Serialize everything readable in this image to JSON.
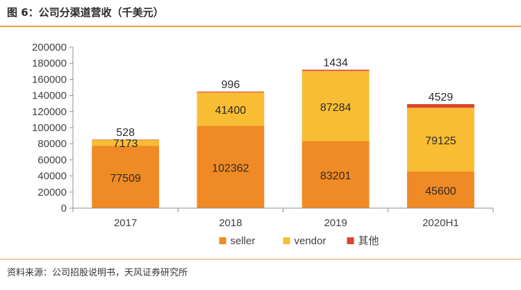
{
  "header": {
    "title": "图 6：公司分渠道营收（千美元）"
  },
  "footer": {
    "source": "资料来源：公司招股说明书，天风证券研究所"
  },
  "chart_data": {
    "type": "bar",
    "stacked": true,
    "categories": [
      "2017",
      "2018",
      "2019",
      "2020H1"
    ],
    "series": [
      {
        "name": "seller",
        "values": [
          77509,
          102362,
          83201,
          45600
        ],
        "color": "#f08a24",
        "label_color": "#2b2b2b"
      },
      {
        "name": "vendor",
        "values": [
          7173,
          41400,
          87284,
          79125
        ],
        "color": "#f9bd33",
        "label_color": "#2b2b2b"
      },
      {
        "name": "其他",
        "values": [
          528,
          996,
          1434,
          4529
        ],
        "color": "#d8462a",
        "label_color": "#2b2b2b"
      }
    ],
    "ylim": [
      0,
      200000
    ],
    "yticks": [
      0,
      20000,
      40000,
      60000,
      80000,
      100000,
      120000,
      140000,
      160000,
      180000,
      200000
    ],
    "grid": false,
    "legend_position": "bottom"
  }
}
